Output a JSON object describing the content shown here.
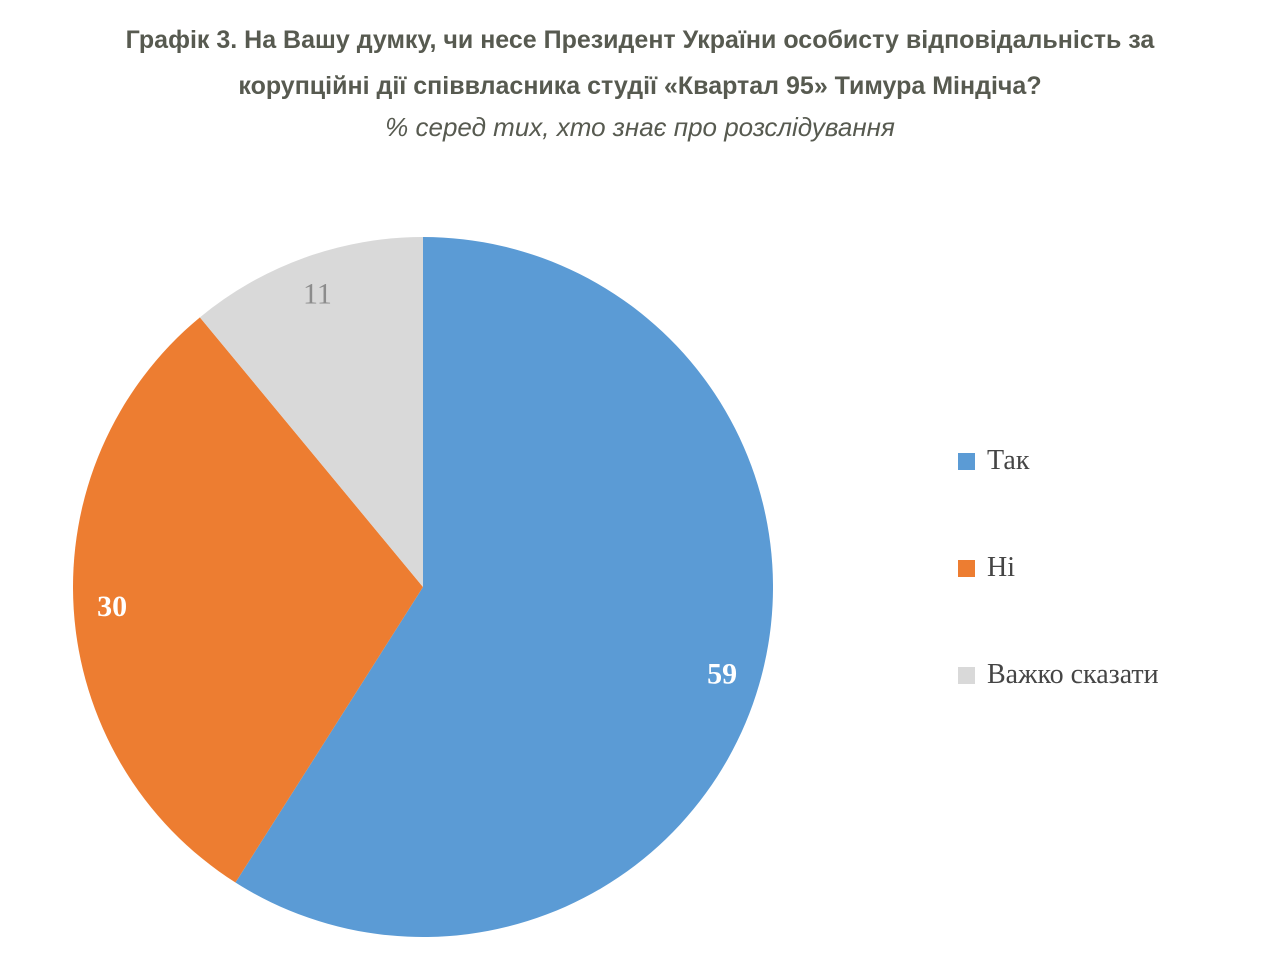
{
  "title": {
    "line1": "Графік 3. На Вашу думку, чи несе Президент України особисту відповідальність за",
    "line2": "корупційні дії співвласника студії «Квартал 95» Тимура Міндіча?",
    "subtitle": "% серед тих, хто знає про розслідування"
  },
  "colors": {
    "background": "#ffffff",
    "title_text": "#575a50",
    "legend_text": "#454545"
  },
  "chart_data": {
    "type": "pie",
    "title": "Графік 3. На Вашу думку, чи несе Президент України особисту відповідальність за корупційні дії співвласника студії «Квартал 95» Тимура Міндіча?",
    "subtitle": "% серед тих, хто знає про розслідування",
    "start_angle_deg": 0,
    "direction": "clockwise",
    "legend_position": "right",
    "label_radius_ratio": 0.89,
    "slices": [
      {
        "label": "Так",
        "value": 59,
        "color": "#5b9bd5",
        "label_text": "59",
        "label_color": "#ffffff",
        "label_bold": true
      },
      {
        "label": "Ні",
        "value": 30,
        "color": "#ed7d31",
        "label_text": "30",
        "label_color": "#ffffff",
        "label_bold": true
      },
      {
        "label": "Важко сказати",
        "value": 11,
        "color": "#d9d9d9",
        "label_text": "11",
        "label_color": "#8c8c8c",
        "label_bold": false
      }
    ]
  }
}
